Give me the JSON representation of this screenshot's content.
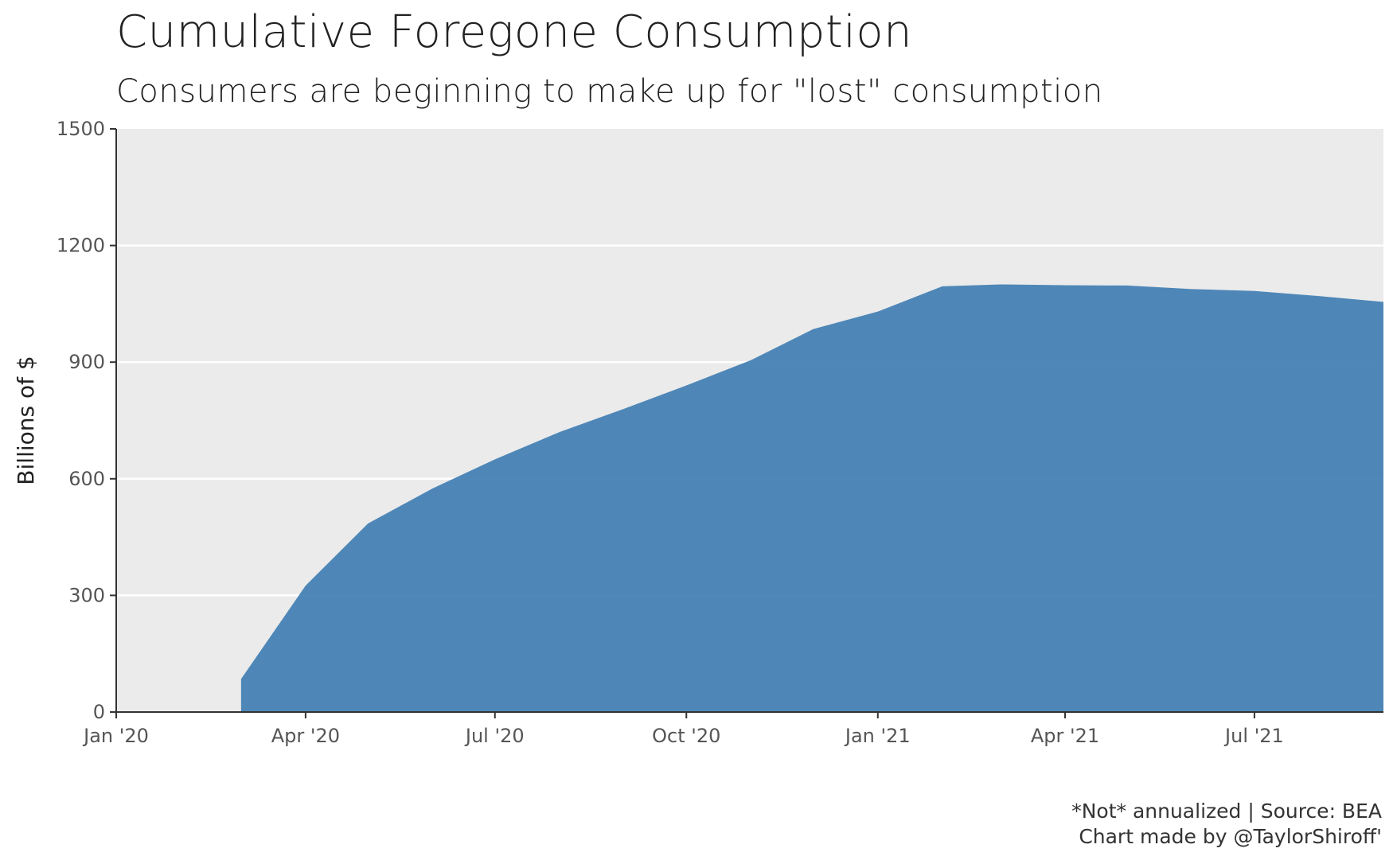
{
  "chart_data": {
    "type": "area",
    "title": "Cumulative Foregone Consumption",
    "subtitle": "Consumers are beginning to make up for \"lost\" consumption",
    "xlabel": "",
    "ylabel": "Billions of $",
    "caption_line1": "*Not* annualized | Source: BEA",
    "caption_line2": "Chart made by @TaylorShiroff'",
    "x_ticks": [
      {
        "date": "2020-01-01",
        "label": "Jan '20"
      },
      {
        "date": "2020-04-01",
        "label": "Apr '20"
      },
      {
        "date": "2020-07-01",
        "label": "Jul '20"
      },
      {
        "date": "2020-10-01",
        "label": "Oct '20"
      },
      {
        "date": "2021-01-01",
        "label": "Jan '21"
      },
      {
        "date": "2021-04-01",
        "label": "Apr '21"
      },
      {
        "date": "2021-07-01",
        "label": "Jul '21"
      }
    ],
    "y_ticks": [
      0,
      300,
      600,
      900,
      1200,
      1500
    ],
    "xlim": [
      "2020-01-01",
      "2021-09-01"
    ],
    "ylim": [
      0,
      1500
    ],
    "grid": true,
    "panel_background": "#ebebeb",
    "fill_color": "#4682b4",
    "x": [
      "2020-03-01",
      "2020-04-01",
      "2020-05-01",
      "2020-06-01",
      "2020-07-01",
      "2020-08-01",
      "2020-09-01",
      "2020-10-01",
      "2020-11-01",
      "2020-12-01",
      "2021-01-01",
      "2021-02-01",
      "2021-03-01",
      "2021-04-01",
      "2021-05-01",
      "2021-06-01",
      "2021-07-01",
      "2021-08-01",
      "2021-09-01"
    ],
    "values": [
      85,
      325,
      485,
      575,
      650,
      720,
      780,
      840,
      905,
      985,
      1030,
      1095,
      1100,
      1098,
      1097,
      1088,
      1083,
      1070,
      1055
    ]
  }
}
